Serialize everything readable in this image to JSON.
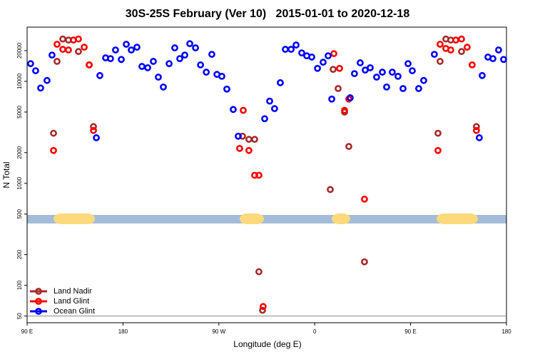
{
  "chart_data": {
    "type": "scatter",
    "title": "30S-25S February (Ver 10)   2015-01-01 to 2020-12-18",
    "x_label": "Longitude (deg E)",
    "y_label": "N Total",
    "log_y": true,
    "legend": "bottom-left",
    "xlim": [
      90,
      540
    ],
    "xticks": [
      {
        "value": 90,
        "label": "90 E"
      },
      180,
      {
        "value": 270,
        "label": "90 W"
      },
      {
        "value": 360,
        "label": "0"
      },
      {
        "value": 450,
        "label": "90 E"
      },
      {
        "value": 540,
        "label": "180"
      }
    ],
    "ylim": [
      43,
      34000
    ],
    "yticks": [
      50,
      100,
      200,
      500,
      1000,
      2000,
      5000,
      10000,
      20000
    ],
    "series": [
      {
        "name": "Land Nadir",
        "color": "#a52a2a",
        "x": [
          114.8,
          118.1,
          123.5,
          128.8,
          133.5,
          138.2,
          148.3,
          152.3,
          292.2,
          298.2,
          303.6,
          307.6,
          311,
          374.6,
          377.3,
          382,
          388,
          392,
          406.7,
          475.7,
          477.7,
          483.1,
          487.7,
          492.4,
          497.8,
          511.8
        ],
        "values": [
          3100,
          15700,
          26000,
          25400,
          25400,
          19600,
          14500,
          3600,
          2900,
          2700,
          2700,
          136,
          57,
          870,
          13100,
          8500,
          5000,
          2300,
          170,
          3100,
          15700,
          26000,
          25400,
          25400,
          19600,
          3600
        ]
      },
      {
        "name": "Land Glint",
        "color": "#ff0000",
        "x": [
          114.8,
          118.1,
          123.5,
          128.8,
          133.5,
          138.2,
          143.6,
          148.3,
          152.3,
          289.5,
          292.9,
          298.2,
          303.6,
          307.6,
          311.6,
          378,
          383.3,
          388,
          392,
          406.7,
          475.7,
          477.7,
          483.1,
          487.7,
          492.4,
          497.8,
          503.1,
          507.8,
          511.8
        ],
        "values": [
          2100,
          23100,
          20600,
          20300,
          25400,
          26000,
          21600,
          14500,
          3300,
          2200,
          5200,
          2100,
          1200,
          1200,
          62,
          18700,
          13400,
          5200,
          6700,
          700,
          2100,
          23100,
          21000,
          20300,
          25400,
          26000,
          21600,
          14500,
          3300
        ]
      },
      {
        "name": "Ocean Glint",
        "color": "#0000ff",
        "x": [
          93.3,
          98,
          102.7,
          108.7,
          113.4,
          155,
          158.3,
          163.7,
          168.3,
          173,
          178.4,
          183.1,
          187.8,
          193.1,
          197.8,
          203.2,
          208.5,
          213.2,
          217.9,
          223.3,
          228.6,
          233.3,
          238,
          242.7,
          248.1,
          252.8,
          258.2,
          263.4,
          268.2,
          272.8,
          277.5,
          283.5,
          288.2,
          313,
          317.7,
          322.3,
          327.7,
          332.4,
          337.8,
          342.5,
          347.8,
          352.5,
          357.2,
          362.6,
          367.9,
          372.6,
          376,
          393.3,
          397.3,
          402.7,
          407.4,
          412.1,
          418.1,
          423.5,
          427.5,
          432.8,
          438.2,
          442.9,
          447.6,
          451.6,
          457.6,
          462.3,
          472.3,
          514.5,
          517.2,
          522.6,
          527.3,
          532.6,
          537.3
        ],
        "values": [
          14900,
          12700,
          8600,
          10200,
          18100,
          2800,
          11400,
          17000,
          16700,
          20300,
          16400,
          23100,
          20300,
          21600,
          14000,
          13600,
          15700,
          11000,
          8800,
          14900,
          21300,
          16700,
          18100,
          23400,
          21300,
          14500,
          12300,
          18400,
          11700,
          11200,
          8400,
          5300,
          2900,
          4300,
          6400,
          5400,
          9700,
          20600,
          20600,
          22700,
          19000,
          17800,
          17300,
          13400,
          15400,
          17800,
          6700,
          6900,
          11900,
          15200,
          12900,
          13600,
          11000,
          12300,
          8800,
          12300,
          11200,
          8500,
          14900,
          12700,
          8500,
          10200,
          18400,
          2800,
          11400,
          17300,
          16700,
          20300,
          16400
        ]
      }
    ]
  }
}
